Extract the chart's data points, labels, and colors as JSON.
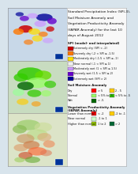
{
  "title": "Standard Precipitation Index (SPI-3),\nSoil Moisture Anomaly and\nVegetation Productivity Anomaly\n(fAPAR Anomaly) for the last 10\ndays of August 2012",
  "title_fontsize": 3.2,
  "bg_color": "#d8e4ec",
  "spi_title": "SPI (model- and interpolated)",
  "spi_entries": [
    {
      "label": "Extremely dry (SPI < -2)",
      "color": "#cc0000"
    },
    {
      "label": "Severely dry (-2 < SPI ≤ -1.5)",
      "color": "#ff7700"
    },
    {
      "label": "Moderately dry (-1.5 < SPI ≤ -1)",
      "color": "#ffdd00"
    },
    {
      "label": "Near normal (-1 < SPI ≤ 1)",
      "color": "#f0f0f0"
    },
    {
      "label": "Moderately wet (1 < SPI ≤ 1.5)",
      "color": "#cc99ff"
    },
    {
      "label": "Severely wet (1.5 < SPI ≤ 2)",
      "color": "#6600cc"
    },
    {
      "label": "Extremely wet (SPI > 2)",
      "color": "#000099"
    }
  ],
  "soil_title": "Soil Moisture Anomaly",
  "soil_rows": [
    {
      "group": "Dry",
      "colors": [
        "#ff0000",
        "#ffcc00"
      ],
      "values": [
        "> 5",
        "2 - 5"
      ]
    },
    {
      "group": "Normal",
      "colors": [
        "#99ff66",
        "#33cc00"
      ],
      "values": [
        "< 5% to -5",
        "< 5% to -5"
      ]
    },
    {
      "group": "Wet",
      "colors": [
        "#006600"
      ],
      "values": [
        "> -5"
      ]
    }
  ],
  "fapar_title": "Vegetation Productivity Anomaly\n(fAPAR Anomaly)",
  "fapar_rows": [
    {
      "group": "Lower than normal",
      "colors": [
        "#ff0000",
        "#ffcc00"
      ],
      "values": [
        "< -2",
        "-2 to -1"
      ]
    },
    {
      "group": "Near normal",
      "colors": [
        "#ccffcc"
      ],
      "values": [
        "-1 to 1"
      ]
    },
    {
      "group": "Higher than normal",
      "colors": [
        "#99cc00",
        "#006633"
      ],
      "values": [
        "1 to 2",
        "> 2"
      ]
    }
  ],
  "map1_bg": "#c8d8e8",
  "map2_bg": "#c8dcc0",
  "map3_bg": "#dce4c8",
  "eu_flag": "#003399",
  "legend_bg": "#f8f8f8",
  "border_color": "#999999"
}
